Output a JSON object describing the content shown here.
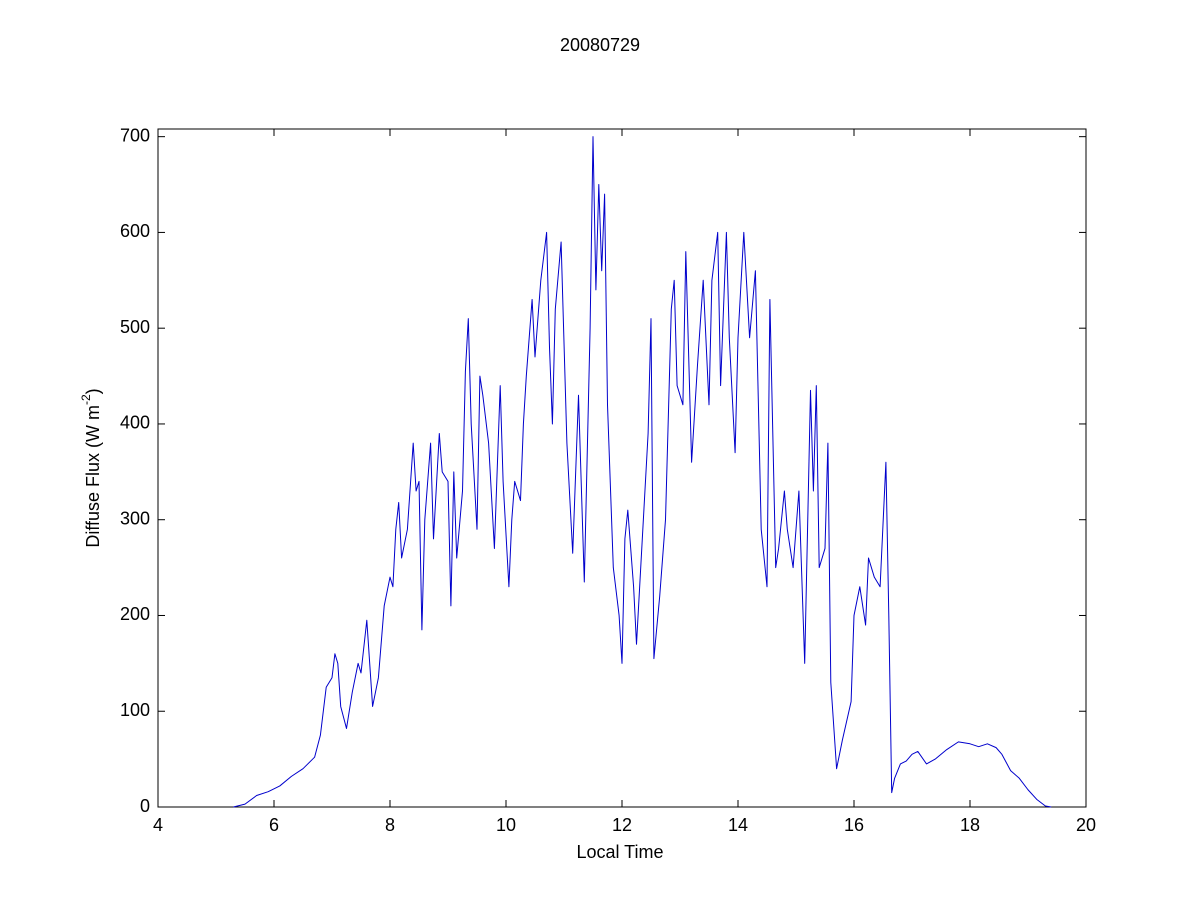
{
  "chart_data": {
    "type": "line",
    "title": "20080729",
    "x_label": "Local Time",
    "y_label": {
      "text": "Diffuse Flux (W m",
      "superscript": "-2",
      "suffix": ")"
    },
    "xlim": [
      4,
      20
    ],
    "xticks": [
      4,
      6,
      8,
      10,
      12,
      14,
      16,
      18,
      20
    ],
    "ylim": [
      0,
      708
    ],
    "yticks": [
      0,
      100,
      200,
      300,
      400,
      500,
      600,
      700
    ],
    "series": [
      {
        "color": "#0000cc",
        "x": [
          5.3,
          5.5,
          5.7,
          5.9,
          6.1,
          6.3,
          6.5,
          6.7,
          6.8,
          6.9,
          7.0,
          7.05,
          7.1,
          7.15,
          7.25,
          7.35,
          7.45,
          7.5,
          7.6,
          7.7,
          7.8,
          7.9,
          8.0,
          8.05,
          8.1,
          8.15,
          8.2,
          8.3,
          8.4,
          8.45,
          8.5,
          8.55,
          8.6,
          8.7,
          8.75,
          8.85,
          8.9,
          9.0,
          9.05,
          9.1,
          9.15,
          9.25,
          9.3,
          9.35,
          9.4,
          9.5,
          9.55,
          9.6,
          9.7,
          9.8,
          9.9,
          9.95,
          10.05,
          10.1,
          10.15,
          10.25,
          10.3,
          10.35,
          10.45,
          10.5,
          10.6,
          10.7,
          10.75,
          10.8,
          10.85,
          10.95,
          11.05,
          11.15,
          11.25,
          11.35,
          11.45,
          11.5,
          11.55,
          11.6,
          11.65,
          11.7,
          11.75,
          11.85,
          11.95,
          12.0,
          12.05,
          12.1,
          12.2,
          12.25,
          12.35,
          12.45,
          12.5,
          12.55,
          12.65,
          12.75,
          12.85,
          12.9,
          12.95,
          13.05,
          13.1,
          13.2,
          13.3,
          13.4,
          13.5,
          13.55,
          13.65,
          13.7,
          13.8,
          13.85,
          13.95,
          14.0,
          14.1,
          14.2,
          14.3,
          14.4,
          14.5,
          14.55,
          14.65,
          14.7,
          14.8,
          14.85,
          14.95,
          15.05,
          15.15,
          15.25,
          15.3,
          15.35,
          15.4,
          15.5,
          15.55,
          15.6,
          15.7,
          15.8,
          15.95,
          16.0,
          16.1,
          16.2,
          16.25,
          16.35,
          16.45,
          16.55,
          16.6,
          16.65,
          16.7,
          16.8,
          16.9,
          17.0,
          17.1,
          17.25,
          17.4,
          17.6,
          17.8,
          18.0,
          18.15,
          18.3,
          18.45,
          18.55,
          18.7,
          18.85,
          19.0,
          19.15,
          19.3,
          19.4
        ],
        "values": [
          0,
          3,
          12,
          16,
          22,
          32,
          40,
          52,
          75,
          125,
          135,
          160,
          150,
          105,
          82,
          120,
          150,
          140,
          195,
          105,
          135,
          210,
          240,
          230,
          290,
          318,
          260,
          290,
          380,
          330,
          340,
          185,
          300,
          380,
          280,
          390,
          350,
          340,
          210,
          350,
          260,
          330,
          455,
          510,
          400,
          290,
          450,
          430,
          380,
          270,
          440,
          340,
          230,
          300,
          340,
          320,
          400,
          450,
          530,
          470,
          550,
          600,
          480,
          400,
          520,
          590,
          380,
          265,
          430,
          235,
          500,
          700,
          540,
          650,
          560,
          640,
          420,
          250,
          200,
          150,
          280,
          310,
          230,
          170,
          280,
          390,
          510,
          155,
          220,
          300,
          520,
          550,
          440,
          420,
          580,
          360,
          460,
          550,
          420,
          550,
          600,
          440,
          600,
          490,
          370,
          490,
          600,
          490,
          560,
          290,
          230,
          530,
          250,
          270,
          330,
          290,
          250,
          330,
          150,
          435,
          330,
          440,
          250,
          270,
          380,
          130,
          40,
          70,
          110,
          200,
          230,
          190,
          260,
          240,
          230,
          360,
          200,
          15,
          30,
          45,
          48,
          55,
          58,
          45,
          50,
          60,
          68,
          66,
          63,
          66,
          62,
          55,
          38,
          30,
          18,
          8,
          1,
          0
        ]
      }
    ]
  }
}
